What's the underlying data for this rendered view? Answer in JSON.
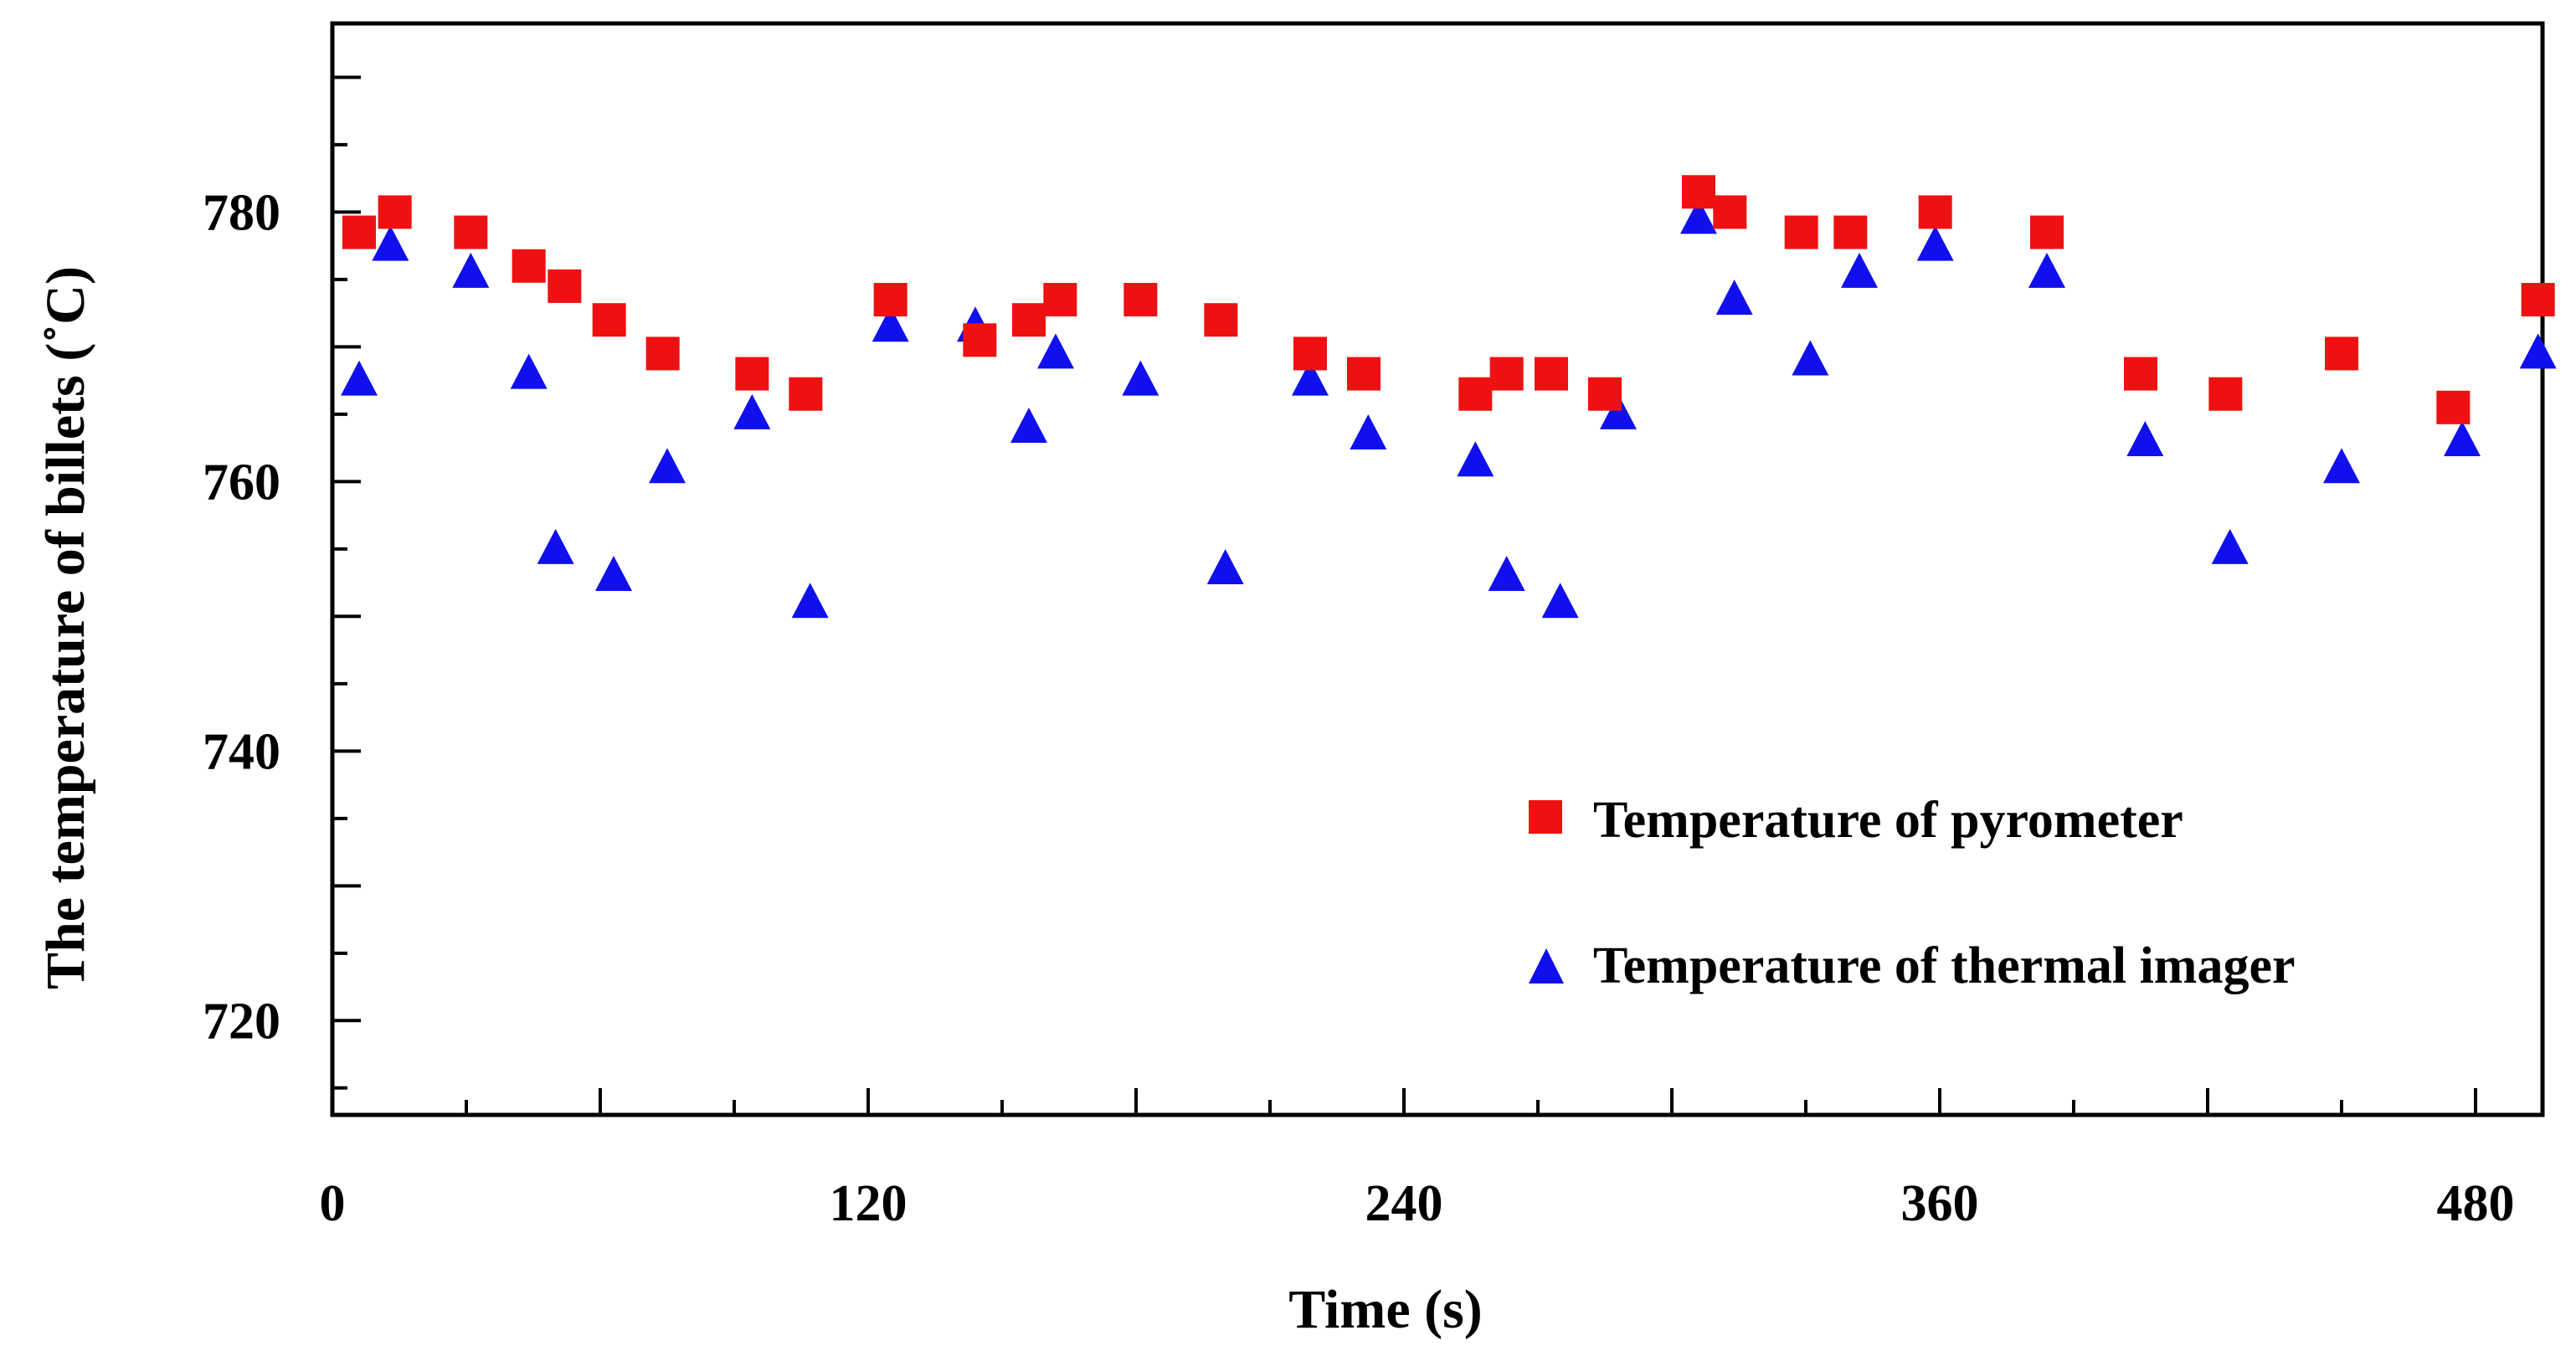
{
  "chart_data": {
    "type": "scatter",
    "title": "",
    "xlabel": "Time (s)",
    "ylabel": "The temperature of billets  (˚C)",
    "xlim": [
      0,
      495
    ],
    "ylim": [
      713,
      794
    ],
    "xticks": [
      0,
      120,
      240,
      360,
      480
    ],
    "xtick_labels": [
      "0",
      "120",
      "240",
      "360",
      "480"
    ],
    "yticks": [
      720,
      740,
      760,
      780
    ],
    "ytick_labels": [
      "720",
      "740",
      "760",
      "780"
    ],
    "legend_position": "bottom-right",
    "series": [
      {
        "name": "Temperature of pyrometer",
        "marker": "square",
        "color": "#ee1111",
        "points": [
          [
            6,
            778.5
          ],
          [
            14,
            780
          ],
          [
            31,
            778.5
          ],
          [
            44,
            776
          ],
          [
            52,
            774.5
          ],
          [
            62,
            772
          ],
          [
            74,
            769.5
          ],
          [
            94,
            768
          ],
          [
            106,
            766.5
          ],
          [
            125,
            773.5
          ],
          [
            145,
            770.5
          ],
          [
            156,
            772
          ],
          [
            163,
            773.5
          ],
          [
            181,
            773.5
          ],
          [
            199,
            772
          ],
          [
            219,
            769.5
          ],
          [
            231,
            768
          ],
          [
            256,
            766.5
          ],
          [
            263,
            768
          ],
          [
            273,
            768
          ],
          [
            285,
            766.5
          ],
          [
            306,
            781.5
          ],
          [
            313,
            780
          ],
          [
            329,
            778.5
          ],
          [
            340,
            778.5
          ],
          [
            359,
            780
          ],
          [
            384,
            778.5
          ],
          [
            405,
            768
          ],
          [
            424,
            766.5
          ],
          [
            450,
            769.5
          ],
          [
            475,
            765.5
          ],
          [
            494,
            773.5
          ]
        ]
      },
      {
        "name": "Temperature of thermal imager",
        "marker": "triangle",
        "color": "#1010ee",
        "points": [
          [
            6,
            767.5
          ],
          [
            13,
            777.5
          ],
          [
            31,
            775.5
          ],
          [
            44,
            768
          ],
          [
            50,
            755
          ],
          [
            63,
            753
          ],
          [
            75,
            761
          ],
          [
            94,
            765
          ],
          [
            107,
            751
          ],
          [
            125,
            771.5
          ],
          [
            144,
            771.5
          ],
          [
            156,
            764
          ],
          [
            162,
            769.5
          ],
          [
            181,
            767.5
          ],
          [
            200,
            753.5
          ],
          [
            219,
            767.5
          ],
          [
            232,
            763.5
          ],
          [
            256,
            761.5
          ],
          [
            263,
            753
          ],
          [
            275,
            751
          ],
          [
            288,
            765
          ],
          [
            306,
            779.5
          ],
          [
            314,
            773.5
          ],
          [
            331,
            769
          ],
          [
            342,
            775.5
          ],
          [
            359,
            777.5
          ],
          [
            384,
            775.5
          ],
          [
            406,
            763
          ],
          [
            425,
            755
          ],
          [
            450,
            761
          ],
          [
            477,
            763
          ],
          [
            494,
            769.5
          ]
        ]
      }
    ]
  }
}
